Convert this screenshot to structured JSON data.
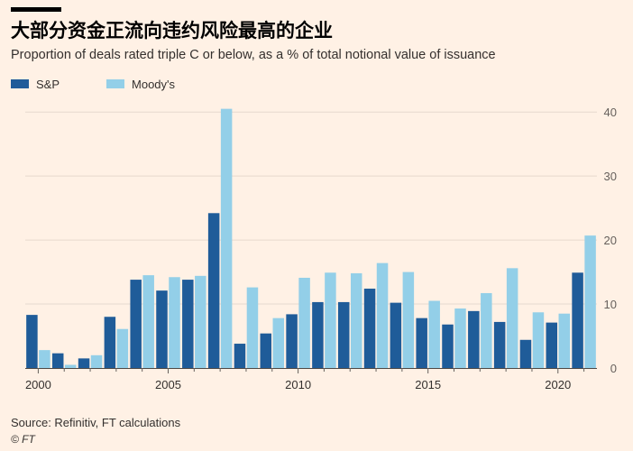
{
  "header": {
    "title": "大部分资金正流向违约风险最高的企业",
    "subtitle": "Proportion of deals rated triple C or below, as a % of total notional value of issuance"
  },
  "footer": {
    "source": "Source: Refinitiv, FT calculations",
    "credit": "© FT"
  },
  "colors": {
    "background": "#fff1e5",
    "sp": "#1f5c99",
    "moodys": "#93cfe8",
    "axis": "#66605c",
    "grid": "#e6d9ce"
  },
  "chart_data": {
    "type": "bar",
    "x": [
      2000,
      2001,
      2002,
      2003,
      2004,
      2005,
      2006,
      2007,
      2008,
      2009,
      2010,
      2011,
      2012,
      2013,
      2014,
      2015,
      2016,
      2017,
      2018,
      2019,
      2020,
      2021
    ],
    "x_tick_labels": [
      "2000",
      "2005",
      "2010",
      "2015",
      "2020"
    ],
    "series": [
      {
        "name": "S&P",
        "values": [
          8.3,
          2.3,
          1.5,
          8.0,
          13.8,
          12.1,
          13.8,
          24.2,
          3.8,
          5.4,
          8.4,
          10.3,
          10.3,
          12.4,
          10.2,
          7.8,
          6.8,
          8.9,
          7.2,
          4.4,
          7.1,
          14.9
        ]
      },
      {
        "name": "Moody's",
        "values": [
          2.8,
          0.5,
          2.0,
          6.1,
          14.5,
          14.2,
          14.4,
          40.5,
          12.6,
          7.8,
          14.1,
          14.9,
          14.8,
          16.4,
          15.0,
          10.5,
          9.3,
          11.7,
          15.6,
          8.7,
          8.5,
          20.7
        ]
      }
    ],
    "y_ticks": [
      0,
      10,
      20,
      30,
      40
    ],
    "ylim": [
      0,
      42
    ],
    "grid": true,
    "legend_position": "top-left",
    "y_axis_side": "right"
  }
}
